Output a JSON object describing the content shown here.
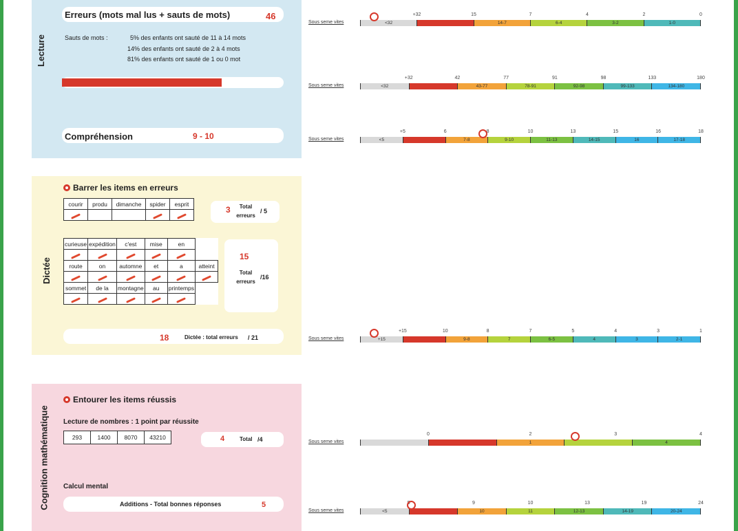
{
  "colors": {
    "frame": "#3aa34a",
    "red": "#d6382b",
    "orange": "#f2a33a",
    "yellow_green": "#b5d33d",
    "green": "#7cc142",
    "teal": "#4fb9b9",
    "blue": "#3fb6e6",
    "grey": "#d9d9d9"
  },
  "lecture": {
    "side_label": "Lecture",
    "errors_title": "Erreurs (mots mal lus + sauts de mots)",
    "errors_value": "46",
    "sauts_label": "Sauts de mots :",
    "sauts_lines": [
      "5% des enfants ont sauté de 11 à 14 mots",
      "14% des enfants ont sauté de 2 à 4 mots",
      "81% des enfants ont sauté de 1 ou 0 mot"
    ],
    "progress_fraction": 0.72,
    "comprehension_label": "Compréhension",
    "comprehension_value": "9 - 10"
  },
  "dictee": {
    "side_label": "Dictée",
    "instruction": "Barrer les items en erreurs",
    "table1_words": [
      "courir",
      "produ",
      "dimanche",
      "spider",
      "esprit"
    ],
    "table1_marks": [
      true,
      false,
      false,
      true,
      true
    ],
    "table1_score": "3",
    "table1_total_label": "Total erreurs",
    "table1_max": "/ 5",
    "table2_rows": [
      [
        "curieuse",
        "expédition",
        "c'est",
        "mise",
        "en"
      ],
      [
        "route",
        "on",
        "automne",
        "et",
        "a",
        "atteint"
      ],
      [
        "sommet",
        "de la",
        "montagne",
        "au",
        "printemps"
      ]
    ],
    "table2_score": "15",
    "table2_total_label": "Total erreurs",
    "table2_max": "/16",
    "footer_score": "18",
    "footer_label": "Dictée : total erreurs",
    "footer_max": "/ 21"
  },
  "cognition": {
    "side_label": "Cognition mathématique",
    "instruction": "Entourer les items réussis",
    "numbers_title": "Lecture de nombres : 1 point par réussite",
    "numbers": [
      "293",
      "1400",
      "8070",
      "43210"
    ],
    "numbers_score": "4",
    "numbers_total_label": "Total",
    "numbers_max": "/4",
    "calcul_title": "Calcul mental",
    "additions_label": "Additions - Total bonnes réponses",
    "additions_score": "5"
  },
  "scales": [
    {
      "label": "Sous seme vites",
      "ticks": [
        "+32",
        "15",
        "7",
        "4",
        "2",
        "0"
      ],
      "segs": [
        "<32",
        "",
        "14-7",
        "6-4",
        "3-2",
        "1-0"
      ],
      "circle_pct": 0.04
    },
    {
      "label": "Sous seme vites",
      "ticks": [
        "+32",
        "42",
        "77",
        "91",
        "98",
        "133",
        "180"
      ],
      "segs": [
        "<32",
        "",
        "43-77",
        "78-91",
        "92-98",
        "99-133",
        "134-180"
      ],
      "circle_pct": null
    },
    {
      "label": "Sous seme vites",
      "ticks": [
        "+5",
        "6",
        "8",
        "10",
        "13",
        "15",
        "16",
        "18"
      ],
      "segs": [
        "<5",
        "",
        "7-8",
        "9-10",
        "11-13",
        "14-15",
        "16",
        "17-18"
      ],
      "circle_pct": 0.36
    },
    {
      "label": "Sous seme vites",
      "ticks": [
        "+15",
        "10",
        "8",
        "7",
        "5",
        "4",
        "3",
        "1"
      ],
      "segs": [
        "+15",
        "",
        "9-8",
        "7",
        "6-5",
        "4",
        "3",
        "2-1"
      ],
      "circle_pct": 0.04
    },
    {
      "label": "Sous seme vites",
      "ticks": [
        "0",
        "2",
        "3",
        "4"
      ],
      "segs": [
        "",
        "",
        "1",
        "",
        "4"
      ],
      "circle_pct": 0.63
    },
    {
      "label": "Sous seme vites",
      "ticks": [
        "5",
        "9",
        "10",
        "13",
        "19",
        "24"
      ],
      "segs": [
        "<5",
        "",
        "10",
        "11",
        "12-13",
        "14-19",
        "20-24"
      ],
      "circle_pct": 0.15
    }
  ]
}
